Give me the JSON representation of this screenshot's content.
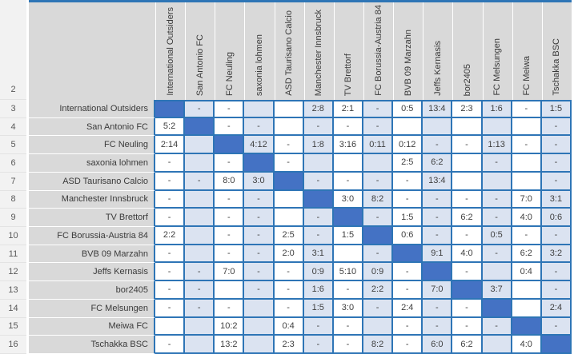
{
  "table": {
    "row_numbers": [
      "2",
      "3",
      "4",
      "5",
      "6",
      "7",
      "8",
      "9",
      "10",
      "11",
      "12",
      "13",
      "14",
      "15",
      "16"
    ],
    "column_headers": [
      "International Outsiders",
      "San Antonio FC",
      "FC Neuling",
      "saxonia lohmen",
      "ASD Taurisano Calcio",
      "Manchester Innsbruck",
      "TV Brettorf",
      "FC Borussia-Austria 84",
      "BVB 09 Marzahn",
      "Jeffs Kernasis",
      "bor2405",
      "FC Melsungen",
      "FC Meiwa",
      "Tschakka BSC"
    ],
    "diag_marker": "DIAG",
    "rows": [
      {
        "name": "International Outsiders",
        "cells": [
          "DIAG",
          "-",
          "-",
          "",
          "",
          "2:8",
          "2:1",
          "-",
          "0:5",
          "13:4",
          "2:3",
          "1:6",
          "-",
          "1:5"
        ]
      },
      {
        "name": "San Antonio FC",
        "cells": [
          "5:2",
          "DIAG",
          "-",
          "-",
          "",
          "-",
          "-",
          "-",
          "",
          "",
          "",
          "",
          "",
          "-"
        ]
      },
      {
        "name": "FC Neuling",
        "cells": [
          "2:14",
          "",
          "DIAG",
          "4:12",
          "-",
          "1:8",
          "3:16",
          "0:11",
          "0:12",
          "-",
          "-",
          "1:13",
          "-",
          "-"
        ]
      },
      {
        "name": "saxonia lohmen",
        "cells": [
          "-",
          "",
          "-",
          "DIAG",
          "-",
          "",
          "",
          "",
          "2:5",
          "6:2",
          "",
          "-",
          "",
          "-"
        ]
      },
      {
        "name": "ASD Taurisano Calcio",
        "cells": [
          "-",
          "-",
          "8:0",
          "3:0",
          "DIAG",
          "-",
          "-",
          "-",
          "-",
          "13:4",
          "",
          "",
          "",
          "-"
        ]
      },
      {
        "name": "Manchester Innsbruck",
        "cells": [
          "-",
          "",
          "-",
          "-",
          "",
          "DIAG",
          "3:0",
          "8:2",
          "-",
          "-",
          "-",
          "-",
          "7:0",
          "3:1"
        ]
      },
      {
        "name": "TV Brettorf",
        "cells": [
          "-",
          "",
          "-",
          "-",
          "",
          "-",
          "DIAG",
          "-",
          "1:5",
          "-",
          "6:2",
          "-",
          "4:0",
          "0:6"
        ]
      },
      {
        "name": "FC Borussia-Austria 84",
        "cells": [
          "2:2",
          "",
          "-",
          "-",
          "2:5",
          "-",
          "1:5",
          "DIAG",
          "0:6",
          "-",
          "-",
          "0:5",
          "-",
          "-"
        ]
      },
      {
        "name": "BVB 09 Marzahn",
        "cells": [
          "-",
          "",
          "-",
          "-",
          "2:0",
          "3:1",
          "",
          "-",
          "DIAG",
          "9:1",
          "4:0",
          "-",
          "6:2",
          "3:2"
        ]
      },
      {
        "name": "Jeffs Kernasis",
        "cells": [
          "-",
          "-",
          "7:0",
          "-",
          "-",
          "0:9",
          "5:10",
          "0:9",
          "-",
          "DIAG",
          "-",
          "",
          "0:4",
          "-"
        ]
      },
      {
        "name": "bor2405",
        "cells": [
          "-",
          "-",
          "",
          "-",
          "-",
          "1:6",
          "-",
          "2:2",
          "-",
          "7:0",
          "DIAG",
          "3:7",
          "",
          "-"
        ]
      },
      {
        "name": "FC Melsungen",
        "cells": [
          "-",
          "-",
          "-",
          "",
          "-",
          "1:5",
          "3:0",
          "-",
          "2:4",
          "-",
          "-",
          "DIAG",
          "",
          "2:4"
        ]
      },
      {
        "name": "Meiwa FC",
        "cells": [
          "",
          "",
          "10:2",
          "",
          "0:4",
          "-",
          "-",
          "",
          "-",
          "-",
          "-",
          "-",
          "DIAG",
          "-"
        ]
      },
      {
        "name": "Tschakka BSC",
        "cells": [
          "-",
          "",
          "13:2",
          "",
          "2:3",
          "-",
          "-",
          "8:2",
          "-",
          "6:0",
          "6:2",
          "",
          "4:0",
          "DIAG"
        ]
      }
    ]
  },
  "colors": {
    "grid_border": "#2e75b6",
    "diagonal_fill": "#4472c4",
    "alt_cell_fill": "#dbe3f1",
    "header_fill": "#d9d9d9",
    "rail_fill": "#f2f2f2",
    "cell_text": "#404040"
  }
}
